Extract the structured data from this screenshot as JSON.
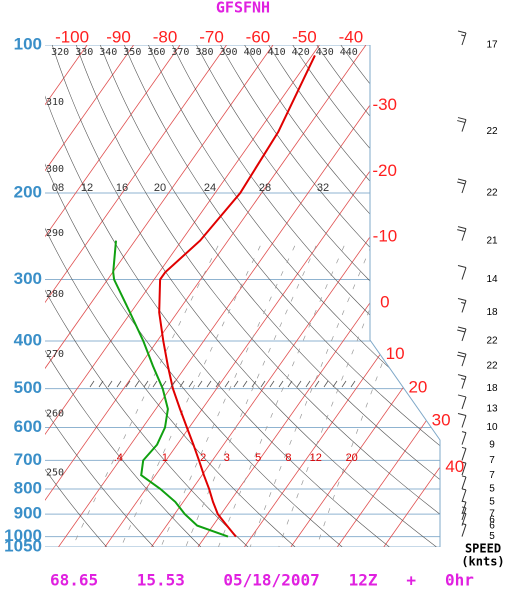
{
  "chart_data": {
    "type": "skewt",
    "title": "GFSFNH",
    "pressure": [
      105,
      150,
      200,
      250,
      290,
      300,
      350,
      400,
      450,
      500,
      550,
      600,
      650,
      700,
      750,
      800,
      850,
      900,
      950,
      1000
    ],
    "series": [
      {
        "color": "#e00000",
        "values": [
          -49.4,
          -45.7,
          -44.6,
          -46.0,
          -48.7,
          -48.7,
          -43.9,
          -38.7,
          -33.9,
          -29.4,
          -24.8,
          -20.5,
          -16.5,
          -12.9,
          -9.6,
          -6.4,
          -3.6,
          -0.7,
          3.0,
          6.6
        ]
      },
      {
        "color": "#10a010",
        "values": [
          null,
          null,
          null,
          -64.1,
          -59.9,
          -58.6,
          -50.2,
          -43.0,
          -37.1,
          -31.6,
          -27.4,
          -25.2,
          -24.3,
          -24.9,
          -23.1,
          -16.9,
          -11.7,
          -7.8,
          -3.4,
          4.9
        ]
      }
    ],
    "ylim": [
      1050,
      100
    ],
    "log_y": true,
    "yticks": [
      100,
      200,
      300,
      400,
      500,
      600,
      700,
      800,
      900,
      1000,
      1050
    ],
    "xlim": [
      -32.9,
      52.1
    ],
    "xticks": [
      -100,
      -90,
      -80,
      -70,
      -60,
      -50,
      -40,
      -30,
      -20,
      -10,
      0,
      10,
      20,
      30,
      40
    ],
    "theta_ticks": [
      250,
      260,
      270,
      280,
      290,
      300,
      310,
      320,
      330,
      340,
      350,
      360,
      370,
      380,
      390,
      400,
      410,
      420,
      430,
      440
    ],
    "mixing_ratio_ticks": [
      {
        "value": 0.4,
        "label": ".4"
      },
      1,
      2,
      3,
      5,
      8,
      12,
      20
    ],
    "moist_labels": [
      "08",
      "12",
      "16",
      "20",
      "24",
      "28",
      "32"
    ],
    "wind": {
      "pressure": [
        100,
        150,
        200,
        250,
        300,
        350,
        400,
        450,
        500,
        550,
        600,
        650,
        700,
        750,
        800,
        850,
        900,
        925,
        950,
        1000
      ],
      "speed": [
        17,
        22,
        22,
        21,
        14,
        18,
        22,
        22,
        18,
        13,
        10,
        9,
        7,
        7,
        5,
        5,
        7,
        6,
        6,
        5
      ]
    },
    "wind_axis_label": [
      "SPEED",
      "(knts)"
    ],
    "footer": "68.65    15.53    05/18/2007   12Z   +   0hr"
  }
}
